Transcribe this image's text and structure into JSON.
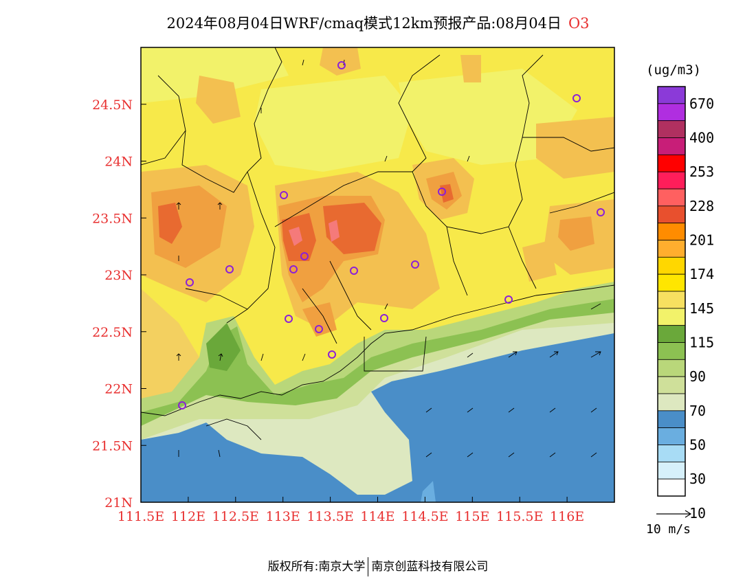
{
  "title": {
    "main": "2024年08月04日WRF/cmaq模式12km预报产品:08月04日",
    "species": "O3"
  },
  "map": {
    "lon_ticks": [
      "111.5E",
      "112E",
      "112.5E",
      "113E",
      "113.5E",
      "114E",
      "114.5E",
      "115E",
      "115.5E",
      "116E"
    ],
    "lat_ticks": [
      "24.5N",
      "24N",
      "23.5N",
      "23N",
      "22.5N",
      "22N",
      "21.5N",
      "21N"
    ],
    "extent": {
      "lon_min": 111.5,
      "lon_max": 116.5,
      "lat_min": 21.0,
      "lat_max": 25.0
    },
    "colors": {
      "ocean": "#4a8ec8",
      "coast_pale": "#dde8c0",
      "low_green": "#b9d77a",
      "green": "#8cc152",
      "dark_green": "#6aa83a",
      "pale_yellow": "#f2f26a",
      "yellow": "#f7e94a",
      "light_orange": "#f3c050",
      "orange": "#f0a040",
      "dark_orange": "#e86a30",
      "pink": "#f57a7a"
    },
    "stations_count_note": "",
    "wind_arrows": "present"
  },
  "legend": {
    "unit": "(ug/m3)",
    "labels": [
      "670",
      "400",
      "253",
      "228",
      "201",
      "174",
      "145",
      "115",
      "90",
      "70",
      "50",
      "30",
      "10"
    ],
    "colors": [
      "#8b3ad8",
      "#b02ee0",
      "#b03060",
      "#c81e78",
      "#ff0000",
      "#ff1e5a",
      "#ff6060",
      "#e8502e",
      "#ff8c00",
      "#ffae2e",
      "#ffd700",
      "#ffe600",
      "#f7e060",
      "#f2f26a",
      "#6aa83a",
      "#8cc152",
      "#b9d77a",
      "#cfe09a",
      "#dde8c0",
      "#4a8ec8",
      "#6aaee0",
      "#a8dcf5",
      "#d6f0fa",
      "#ffffff"
    ]
  },
  "wind_reference": {
    "label": "10 m/s",
    "icon": "long-arrow-right-icon"
  },
  "copyright": {
    "prefix": "版权所有:",
    "org1": "南京大学",
    "org2": "南京创蓝科技有限公司"
  }
}
